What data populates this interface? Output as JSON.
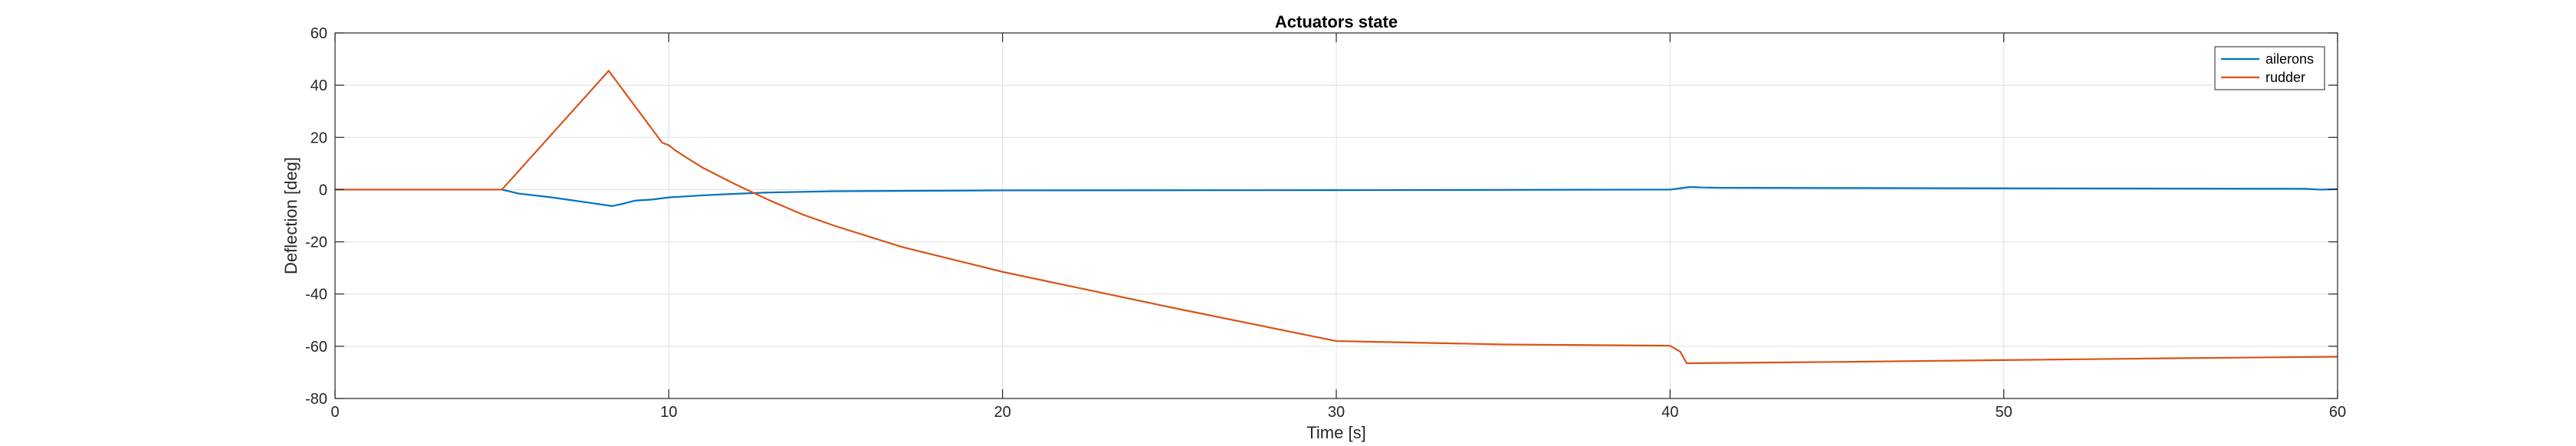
{
  "chart_data": {
    "type": "line",
    "title": "Actuators state",
    "xlabel": "Time [s]",
    "ylabel": "Deflection [deg]",
    "xlim": [
      0,
      60
    ],
    "ylim": [
      -80,
      60
    ],
    "xticks": [
      0,
      10,
      20,
      30,
      40,
      50,
      60
    ],
    "yticks": [
      -80,
      -60,
      -40,
      -20,
      0,
      20,
      40,
      60
    ],
    "grid": true,
    "legend": "top-right",
    "series": [
      {
        "name": "ailerons",
        "color": "#0072bd",
        "x": [
          0,
          5,
          5.5,
          6.5,
          7.5,
          8.3,
          8.6,
          9.0,
          9.5,
          10.0,
          10.5,
          11.0,
          12.0,
          13.0,
          15.0,
          20.0,
          30.0,
          40.0,
          40.3,
          40.6,
          41.0,
          41.5,
          45.0,
          50.0,
          55.0,
          59.0,
          59.5,
          60.0
        ],
        "y": [
          0,
          0,
          -1.5,
          -3.0,
          -4.8,
          -6.3,
          -5.5,
          -4.2,
          -3.8,
          -3.0,
          -2.6,
          -2.2,
          -1.6,
          -1.1,
          -0.6,
          -0.3,
          -0.2,
          0.0,
          0.5,
          1.0,
          0.8,
          0.7,
          0.6,
          0.5,
          0.4,
          0.3,
          0.0,
          0.2
        ]
      },
      {
        "name": "rudder",
        "color": "#d95319",
        "x": [
          0,
          5,
          8.2,
          9.8,
          10.0,
          10.2,
          10.5,
          11.0,
          12.0,
          13.0,
          14.0,
          15.0,
          17.0,
          20.0,
          25.0,
          30.0,
          35.0,
          40.0,
          40.3,
          40.5,
          45.0,
          50.0,
          55.0,
          60.0
        ],
        "y": [
          0,
          0,
          45.5,
          18.0,
          17.0,
          15.0,
          12.5,
          8.5,
          2.0,
          -4.0,
          -9.5,
          -14.0,
          -22.0,
          -31.5,
          -45.0,
          -58.0,
          -59.3,
          -59.8,
          -62.0,
          -66.5,
          -66.0,
          -65.3,
          -64.6,
          -64.0
        ]
      }
    ]
  }
}
